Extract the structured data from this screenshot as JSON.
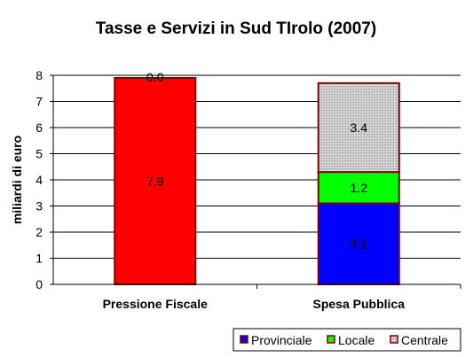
{
  "chart_data": {
    "type": "bar",
    "stacked": true,
    "title": "Tasse e Servizi in Sud TIrolo (2007)",
    "ylabel": "miliardi di euro",
    "xlabel": "",
    "ylim": [
      0,
      8
    ],
    "yticks": [
      "0",
      "1",
      "2",
      "3",
      "4",
      "5",
      "6",
      "7",
      "8"
    ],
    "grid": true,
    "legend_position": "bottom-right",
    "categories": [
      "Pressione Fiscale",
      "Spesa Pubblica"
    ],
    "bars": [
      {
        "category": "Pressione Fiscale",
        "segments": [
          {
            "value": 7.9,
            "label": "7.9",
            "color": "#FF0000"
          },
          {
            "value": 0.0,
            "label": "0.0",
            "color": "#FF0000"
          }
        ]
      },
      {
        "category": "Spesa Pubblica",
        "segments": [
          {
            "value": 3.1,
            "label": "3.1",
            "color": "#0000FF",
            "legend": "Provinciale"
          },
          {
            "value": 1.2,
            "label": "1.2",
            "color": "#00FF00",
            "legend": "Locale"
          },
          {
            "value": 3.4,
            "label": "3.4",
            "color": "#C0C0C0",
            "legend": "Centrale",
            "pattern": "dotted"
          }
        ]
      }
    ],
    "legend": [
      {
        "name": "Provinciale",
        "color": "#0000FF"
      },
      {
        "name": "Locale",
        "color": "#00FF00"
      },
      {
        "name": "Centrale",
        "color": "#C0C0C0"
      }
    ],
    "bar_border_color": "#800000"
  }
}
